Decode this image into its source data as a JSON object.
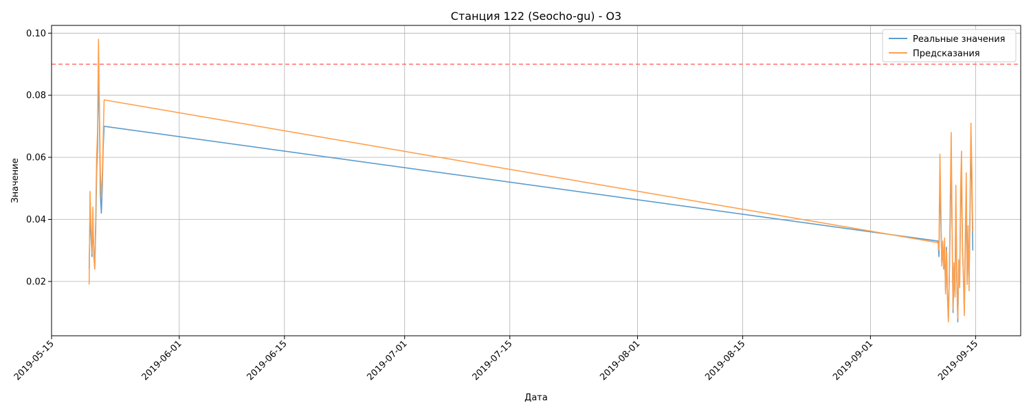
{
  "chart_data": {
    "type": "line",
    "title": "Станция 122 (Seocho-gu) - O3",
    "xlabel": "Дата",
    "ylabel": "Значение",
    "xlim": [
      "2019-05-15T00:00",
      "2019-09-21T00:00"
    ],
    "ylim": [
      0.0025,
      0.1025
    ],
    "x_ticks": [
      "2019-05-15",
      "2019-06-01",
      "2019-06-15",
      "2019-07-01",
      "2019-07-15",
      "2019-08-01",
      "2019-08-15",
      "2019-09-01",
      "2019-09-15"
    ],
    "y_ticks": [
      0.02,
      0.04,
      0.06,
      0.08,
      0.1
    ],
    "y_tick_labels": [
      "0.02",
      "0.04",
      "0.06",
      "0.08",
      "0.10"
    ],
    "grid": true,
    "legend_position": "top-right",
    "threshold": {
      "value": 0.09,
      "color": "#ff6b6b",
      "style": "dashed"
    },
    "series": [
      {
        "name": "Реальные значения",
        "color": "#5b9ccc",
        "points": [
          [
            "2019-05-20T00:00",
            0.024
          ],
          [
            "2019-05-20T03:00",
            0.042
          ],
          [
            "2019-05-20T06:00",
            0.035
          ],
          [
            "2019-05-20T09:00",
            0.028
          ],
          [
            "2019-05-20T12:00",
            0.038
          ],
          [
            "2019-05-20T15:00",
            0.03
          ],
          [
            "2019-05-20T18:00",
            0.024
          ],
          [
            "2019-05-20T21:00",
            0.036
          ],
          [
            "2019-05-21T00:00",
            0.055
          ],
          [
            "2019-05-21T03:00",
            0.063
          ],
          [
            "2019-05-21T06:00",
            0.088
          ],
          [
            "2019-05-21T09:00",
            0.072
          ],
          [
            "2019-05-21T12:00",
            0.048
          ],
          [
            "2019-05-21T15:00",
            0.042
          ],
          [
            "2019-05-21T18:00",
            0.05
          ],
          [
            "2019-05-21T21:00",
            0.063
          ],
          [
            "2019-05-22T00:00",
            0.07
          ],
          [
            "2019-09-10T00:00",
            0.033
          ],
          [
            "2019-09-10T03:00",
            0.028
          ],
          [
            "2019-09-10T06:00",
            0.051
          ],
          [
            "2019-09-10T09:00",
            0.04
          ],
          [
            "2019-09-10T12:00",
            0.026
          ],
          [
            "2019-09-10T15:00",
            0.032
          ],
          [
            "2019-09-10T18:00",
            0.024
          ],
          [
            "2019-09-10T21:00",
            0.03
          ],
          [
            "2019-09-11T00:00",
            0.017
          ],
          [
            "2019-09-11T03:00",
            0.031
          ],
          [
            "2019-09-11T06:00",
            0.016
          ],
          [
            "2019-09-11T09:00",
            0.008
          ],
          [
            "2019-09-11T12:00",
            0.022
          ],
          [
            "2019-09-11T15:00",
            0.04
          ],
          [
            "2019-09-11T18:00",
            0.06
          ],
          [
            "2019-09-11T21:00",
            0.035
          ],
          [
            "2019-09-12T00:00",
            0.01
          ],
          [
            "2019-09-12T03:00",
            0.024
          ],
          [
            "2019-09-12T06:00",
            0.016
          ],
          [
            "2019-09-12T09:00",
            0.045
          ],
          [
            "2019-09-12T12:00",
            0.02
          ],
          [
            "2019-09-12T15:00",
            0.007
          ],
          [
            "2019-09-12T18:00",
            0.025
          ],
          [
            "2019-09-12T21:00",
            0.019
          ],
          [
            "2019-09-13T00:00",
            0.045
          ],
          [
            "2019-09-13T03:00",
            0.053
          ],
          [
            "2019-09-13T06:00",
            0.03
          ],
          [
            "2019-09-13T09:00",
            0.022
          ],
          [
            "2019-09-13T12:00",
            0.01
          ],
          [
            "2019-09-13T15:00",
            0.032
          ],
          [
            "2019-09-13T18:00",
            0.047
          ],
          [
            "2019-09-13T21:00",
            0.02
          ],
          [
            "2019-09-14T00:00",
            0.036
          ],
          [
            "2019-09-14T03:00",
            0.02
          ],
          [
            "2019-09-14T06:00",
            0.04
          ],
          [
            "2019-09-14T09:00",
            0.065
          ],
          [
            "2019-09-14T12:00",
            0.05
          ],
          [
            "2019-09-14T15:00",
            0.03
          ]
        ]
      },
      {
        "name": "Предсказания",
        "color": "#ffa04d",
        "points": [
          [
            "2019-05-20T00:00",
            0.019
          ],
          [
            "2019-05-20T03:00",
            0.049
          ],
          [
            "2019-05-20T06:00",
            0.038
          ],
          [
            "2019-05-20T09:00",
            0.029
          ],
          [
            "2019-05-20T12:00",
            0.044
          ],
          [
            "2019-05-20T15:00",
            0.028
          ],
          [
            "2019-05-20T18:00",
            0.024
          ],
          [
            "2019-05-20T21:00",
            0.04
          ],
          [
            "2019-05-21T00:00",
            0.06
          ],
          [
            "2019-05-21T03:00",
            0.068
          ],
          [
            "2019-05-21T06:00",
            0.098
          ],
          [
            "2019-05-21T09:00",
            0.076
          ],
          [
            "2019-05-21T12:00",
            0.055
          ],
          [
            "2019-05-21T15:00",
            0.047
          ],
          [
            "2019-05-21T18:00",
            0.054
          ],
          [
            "2019-05-21T21:00",
            0.066
          ],
          [
            "2019-05-22T00:00",
            0.0785
          ],
          [
            "2019-09-10T00:00",
            0.0325
          ],
          [
            "2019-09-10T03:00",
            0.03
          ],
          [
            "2019-09-10T06:00",
            0.061
          ],
          [
            "2019-09-10T09:00",
            0.043
          ],
          [
            "2019-09-10T12:00",
            0.025
          ],
          [
            "2019-09-10T15:00",
            0.033
          ],
          [
            "2019-09-10T18:00",
            0.024
          ],
          [
            "2019-09-10T21:00",
            0.034
          ],
          [
            "2019-09-11T00:00",
            0.016
          ],
          [
            "2019-09-11T03:00",
            0.03
          ],
          [
            "2019-09-11T06:00",
            0.015
          ],
          [
            "2019-09-11T09:00",
            0.007
          ],
          [
            "2019-09-11T12:00",
            0.023
          ],
          [
            "2019-09-11T15:00",
            0.046
          ],
          [
            "2019-09-11T18:00",
            0.068
          ],
          [
            "2019-09-11T21:00",
            0.036
          ],
          [
            "2019-09-12T00:00",
            0.011
          ],
          [
            "2019-09-12T03:00",
            0.026
          ],
          [
            "2019-09-12T06:00",
            0.015
          ],
          [
            "2019-09-12T09:00",
            0.051
          ],
          [
            "2019-09-12T12:00",
            0.021
          ],
          [
            "2019-09-12T15:00",
            0.008
          ],
          [
            "2019-09-12T18:00",
            0.027
          ],
          [
            "2019-09-12T21:00",
            0.018
          ],
          [
            "2019-09-13T00:00",
            0.05
          ],
          [
            "2019-09-13T03:00",
            0.062
          ],
          [
            "2019-09-13T06:00",
            0.032
          ],
          [
            "2019-09-13T09:00",
            0.021
          ],
          [
            "2019-09-13T12:00",
            0.009
          ],
          [
            "2019-09-13T15:00",
            0.034
          ],
          [
            "2019-09-13T18:00",
            0.055
          ],
          [
            "2019-09-13T21:00",
            0.019
          ],
          [
            "2019-09-14T00:00",
            0.038
          ],
          [
            "2019-09-14T03:00",
            0.017
          ],
          [
            "2019-09-14T06:00",
            0.044
          ],
          [
            "2019-09-14T09:00",
            0.071
          ],
          [
            "2019-09-14T12:00",
            0.056
          ],
          [
            "2019-09-14T15:00",
            0.036
          ]
        ]
      }
    ]
  }
}
